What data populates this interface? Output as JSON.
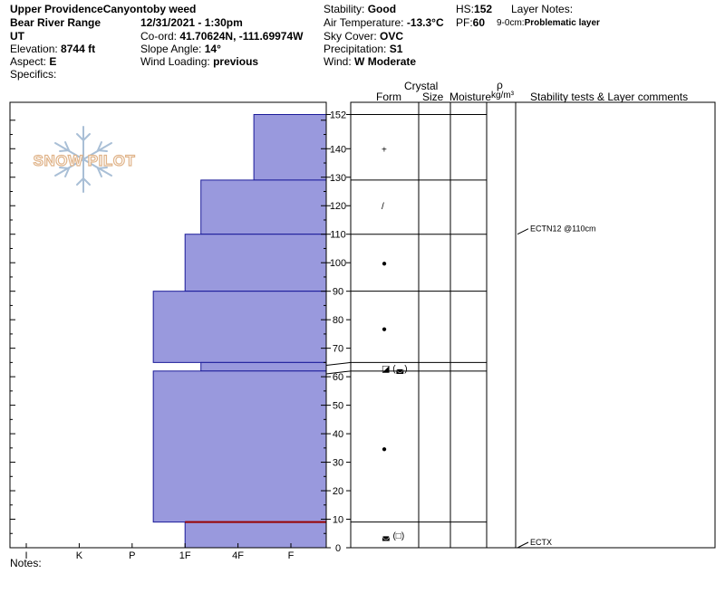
{
  "header": {
    "location": "Upper ProvidenceCanyon",
    "observer": "toby weed",
    "range": "Bear River Range",
    "datetime": "12/31/2021 - 1:30pm",
    "state": "UT",
    "coord_label": "Co-ord:",
    "coord_value": "41.70624N, -111.69974W",
    "elevation_label": "Elevation:",
    "elevation_value": "8744 ft",
    "slope_label": "Slope Angle:",
    "slope_value": "14°",
    "aspect_label": "Aspect:",
    "aspect_value": "E",
    "wind_loading_label": "Wind Loading:",
    "wind_loading_value": "previous",
    "specifics_label": "Specifics:",
    "stability_label": "Stability:",
    "stability_value": "Good",
    "air_temp_label": "Air Temperature:",
    "air_temp_value": "-13.3°C",
    "sky_label": "Sky Cover:",
    "sky_value": "OVC",
    "precip_label": "Precipitation:",
    "precip_value": "S1",
    "wind_label": "Wind:",
    "wind_value": "W Moderate",
    "hs_label": "HS:",
    "hs_value": "152",
    "pf_label": "PF:",
    "pf_value": "60",
    "layer_notes_label": "Layer Notes:",
    "layer_note_range": "9-0cm:",
    "layer_note_text": "Problematic layer"
  },
  "logo_text": "SNOW PILOT",
  "notes_label": "Notes:",
  "columns": {
    "crystal": "Crystal",
    "form": "Form",
    "size": "Size",
    "moisture": "Moisture",
    "rho": "ρ",
    "density_unit": "kg/m³",
    "stability": "Stability tests & Layer comments"
  },
  "chart_data": {
    "type": "snow-profile",
    "hardness_axis": [
      "I",
      "K",
      "P",
      "1F",
      "4F",
      "F"
    ],
    "depth_ticks": [
      0,
      10,
      20,
      30,
      40,
      50,
      60,
      70,
      80,
      90,
      100,
      110,
      120,
      130,
      140,
      152
    ],
    "hardness_layers": [
      {
        "top": 152,
        "bottom": 129,
        "hardness": 0.7
      },
      {
        "top": 129,
        "bottom": 110,
        "hardness": 1.7
      },
      {
        "top": 110,
        "bottom": 90,
        "hardness": 2.0
      },
      {
        "top": 90,
        "bottom": 65,
        "hardness": 2.6
      },
      {
        "top": 65,
        "bottom": 62,
        "hardness": 1.7
      },
      {
        "top": 62,
        "bottom": 9,
        "hardness": 2.6
      },
      {
        "top": 9,
        "bottom": 0,
        "hardness": 2.0
      }
    ],
    "layer_boundaries": [
      152,
      129,
      110,
      90,
      65,
      62,
      9,
      0
    ],
    "highlight_boundary": 9,
    "highlight_color": "#990000",
    "fill_color": "#9999dd",
    "crystals": [
      {
        "depth": 140,
        "symbol": "+"
      },
      {
        "depth": 120,
        "symbol": "/"
      },
      {
        "depth": 100,
        "symbol": "●"
      },
      {
        "depth": 77,
        "symbol": "●"
      },
      {
        "depth": 63,
        "symbol": "◪ (◛)"
      },
      {
        "depth": 35,
        "symbol": "●"
      },
      {
        "depth": 4.5,
        "symbol": "◛ (□)"
      }
    ],
    "stability_tests": [
      {
        "depth": 110,
        "label": "ECTN12 @110cm"
      },
      {
        "depth": 0,
        "label": "ECTX"
      }
    ]
  }
}
